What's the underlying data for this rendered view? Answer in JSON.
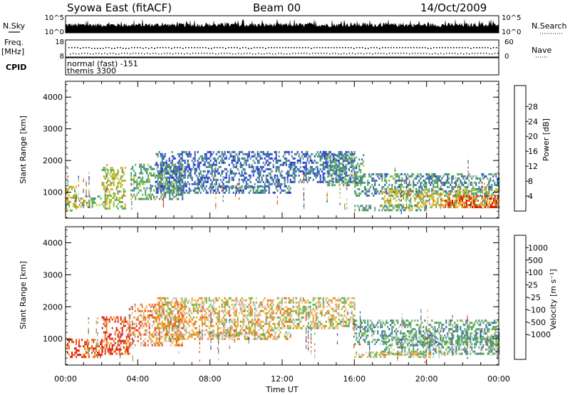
{
  "header": {
    "station": "Syowa East (fitACF)",
    "beam": "Beam 00",
    "date": "14/Oct/2009"
  },
  "nsky_panel": {
    "left_label": "N.Sky",
    "left_ticks": [
      "10^5",
      "10^0"
    ],
    "right_label": "N.Search",
    "right_ticks": [
      "10^5",
      "10^0"
    ]
  },
  "freq_panel": {
    "left_label_line1": "Freq.",
    "left_label_line2": "[MHz]",
    "left_ticks": [
      "18",
      "8"
    ],
    "right_label": "Nave",
    "right_ticks": [
      "60",
      "0"
    ]
  },
  "cpid_panel": {
    "label": "CPID",
    "line1": "normal (fast) -151",
    "line2": "themis 3300"
  },
  "x_axis": {
    "label": "Time UT",
    "ticks": [
      "00:00",
      "04:00",
      "08:00",
      "12:00",
      "16:00",
      "20:00",
      "00:00"
    ]
  },
  "chart_data": [
    {
      "type": "heatmap",
      "name": "power",
      "x_range_hours": [
        0,
        24
      ],
      "ylabel": "Slant Range [km]",
      "ylim": [
        180,
        4500
      ],
      "y_ticks": [
        1000,
        2000,
        3000,
        4000
      ],
      "colorbar": {
        "label": "Power [dB]",
        "ticks": [
          "4",
          "8",
          "12",
          "16",
          "20",
          "24",
          "28"
        ],
        "range": [
          0,
          30
        ],
        "colors": [
          "#1f2bd6",
          "#2b52b4",
          "#3e7a9a",
          "#4e9a6a",
          "#62b84a",
          "#c8c829",
          "#f2a21c",
          "#ef6e16",
          "#e43a13",
          "#d8180f"
        ]
      },
      "regions": [
        {
          "t": [
            0.0,
            0.6
          ],
          "r": [
            450,
            1200
          ],
          "level": 0.55
        },
        {
          "t": [
            0.5,
            2.0
          ],
          "r": [
            500,
            900
          ],
          "level": 0.45
        },
        {
          "t": [
            2.0,
            3.3
          ],
          "r": [
            500,
            1800
          ],
          "level": 0.5
        },
        {
          "t": [
            3.6,
            6.5
          ],
          "r": [
            800,
            1900
          ],
          "level": 0.35
        },
        {
          "t": [
            5.0,
            12.5
          ],
          "r": [
            1000,
            2300
          ],
          "level": 0.2
        },
        {
          "t": [
            8.0,
            11.0
          ],
          "r": [
            1130,
            1190
          ],
          "level": 0.3
        },
        {
          "t": [
            12.5,
            16.0
          ],
          "r": [
            1300,
            2300
          ],
          "level": 0.2
        },
        {
          "t": [
            14.5,
            16.5
          ],
          "r": [
            1200,
            2200
          ],
          "level": 0.35
        },
        {
          "t": [
            16.0,
            24.0
          ],
          "r": [
            900,
            1600
          ],
          "level": 0.3
        },
        {
          "t": [
            17.5,
            24.0
          ],
          "r": [
            550,
            1100
          ],
          "level": 0.55
        },
        {
          "t": [
            21.0,
            24.0
          ],
          "r": [
            550,
            900
          ],
          "level": 0.85
        },
        {
          "t": [
            16.0,
            20.0
          ],
          "r": [
            400,
            600
          ],
          "level": 0.35
        }
      ]
    },
    {
      "type": "heatmap",
      "name": "velocity",
      "x_range_hours": [
        0,
        24
      ],
      "ylabel": "Slant Range [km]",
      "ylim": [
        180,
        4500
      ],
      "y_ticks": [
        1000,
        2000,
        3000,
        4000
      ],
      "colorbar": {
        "label": "Velocity [m s⁻¹]",
        "ticks": [
          "1000",
          "500",
          "100",
          "25",
          "-25",
          "-100",
          "-500",
          "-1000"
        ],
        "range": [
          -1200,
          1200
        ],
        "colors": [
          "#d8180f",
          "#e43a13",
          "#ef6e16",
          "#f2a21c",
          "#c9c9c9",
          "#62b84a",
          "#4e9a6a",
          "#3e7a9a",
          "#2b52b4",
          "#1f2bd6"
        ]
      },
      "regions": [
        {
          "t": [
            0.0,
            2.0
          ],
          "r": [
            450,
            1000
          ],
          "level": 0.2
        },
        {
          "t": [
            2.0,
            3.5
          ],
          "r": [
            500,
            1700
          ],
          "level": 0.15
        },
        {
          "t": [
            3.5,
            6.5
          ],
          "r": [
            800,
            2100
          ],
          "level": 0.3
        },
        {
          "t": [
            5.0,
            12.5
          ],
          "r": [
            1000,
            2300
          ],
          "level": 0.4
        },
        {
          "t": [
            8.0,
            11.0
          ],
          "r": [
            1120,
            1200
          ],
          "level": 0.45
        },
        {
          "t": [
            12.5,
            16.0
          ],
          "r": [
            1300,
            2300
          ],
          "level": 0.45
        },
        {
          "t": [
            16.0,
            24.0
          ],
          "r": [
            800,
            1600
          ],
          "level": 0.65
        },
        {
          "t": [
            17.5,
            24.0
          ],
          "r": [
            550,
            1100
          ],
          "level": 0.6
        },
        {
          "t": [
            16.0,
            21.0
          ],
          "r": [
            400,
            600
          ],
          "level": 0.45
        }
      ]
    }
  ]
}
